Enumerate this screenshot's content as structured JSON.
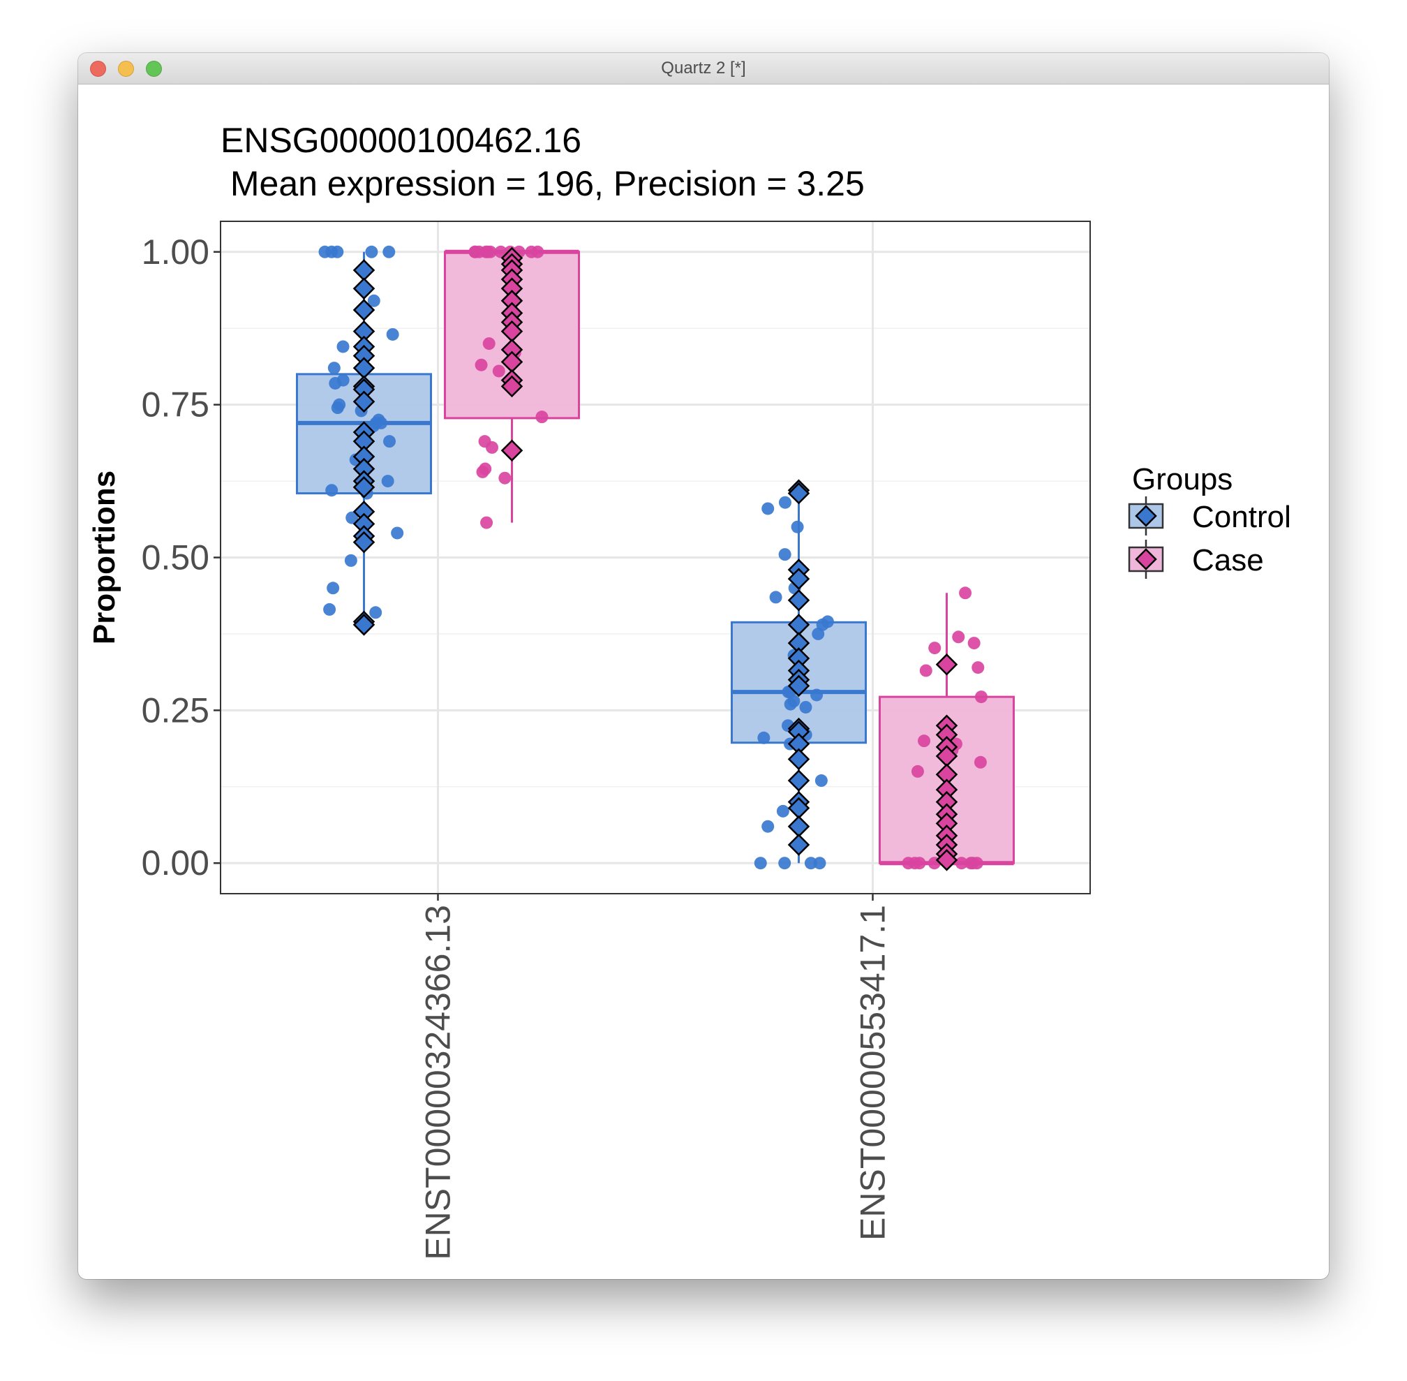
{
  "window": {
    "title": "Quartz 2 [*]",
    "buttons": {
      "close": "close",
      "minimize": "minimize",
      "zoom": "zoom"
    }
  },
  "chart_data": {
    "type": "boxplot",
    "title": "ENSG00000100462.16",
    "subtitle": " Mean expression = 196, Precision = 3.25",
    "xlabel": "",
    "ylabel": "Proportions",
    "ylim": [
      -0.05,
      1.05
    ],
    "yticks": [
      "0.00",
      "0.25",
      "0.50",
      "0.75",
      "1.00"
    ],
    "grid": true,
    "legend": {
      "title": "Groups",
      "position": "right"
    },
    "categories": [
      "ENST00000324366.13",
      "ENST00000553417.1"
    ],
    "series": [
      {
        "name": "Control",
        "color": "#3a78d0",
        "fill": "#adc7e9",
        "boxes": [
          {
            "min": 0.39,
            "q1": 0.605,
            "median": 0.72,
            "q3": 0.8,
            "max": 1.0
          },
          {
            "min": 0.0,
            "q1": 0.197,
            "median": 0.28,
            "q3": 0.394,
            "max": 0.61
          }
        ],
        "points": [
          [
            1.0,
            1.0,
            1.0,
            1.0,
            1.0,
            0.92,
            0.865,
            0.845,
            0.81,
            0.79,
            0.785,
            0.75,
            0.745,
            0.74,
            0.725,
            0.72,
            0.72,
            0.715,
            0.69,
            0.66,
            0.625,
            0.61,
            0.605,
            0.565,
            0.54,
            0.495,
            0.45,
            0.415,
            0.41
          ],
          [
            0.59,
            0.58,
            0.55,
            0.505,
            0.45,
            0.435,
            0.395,
            0.39,
            0.375,
            0.34,
            0.31,
            0.28,
            0.28,
            0.275,
            0.265,
            0.26,
            0.255,
            0.225,
            0.21,
            0.205,
            0.195,
            0.135,
            0.085,
            0.06,
            0.0,
            0.0,
            0.0,
            0.0
          ]
        ],
        "diamonds": [
          [
            0.97,
            0.94,
            0.905,
            0.87,
            0.845,
            0.83,
            0.81,
            0.78,
            0.775,
            0.755,
            0.705,
            0.69,
            0.665,
            0.645,
            0.625,
            0.615,
            0.575,
            0.555,
            0.535,
            0.525,
            0.395,
            0.39
          ],
          [
            0.61,
            0.605,
            0.48,
            0.465,
            0.43,
            0.39,
            0.36,
            0.335,
            0.315,
            0.3,
            0.29,
            0.22,
            0.215,
            0.195,
            0.17,
            0.135,
            0.1,
            0.09,
            0.06,
            0.03
          ]
        ]
      },
      {
        "name": "Case",
        "color": "#d9449f",
        "fill": "#f0b6d9",
        "boxes": [
          {
            "min": 0.557,
            "q1": 0.728,
            "median": 1.0,
            "q3": 1.0,
            "max": 1.0
          },
          {
            "min": 0.0,
            "q1": 0.0,
            "median": 0.0,
            "q3": 0.272,
            "max": 0.442
          }
        ],
        "points": [
          [
            1.0,
            1.0,
            1.0,
            1.0,
            1.0,
            1.0,
            1.0,
            1.0,
            1.0,
            1.0,
            1.0,
            0.85,
            0.835,
            0.815,
            0.805,
            0.73,
            0.69,
            0.68,
            0.645,
            0.64,
            0.63,
            0.557
          ],
          [
            0.442,
            0.37,
            0.36,
            0.352,
            0.32,
            0.315,
            0.272,
            0.2,
            0.195,
            0.185,
            0.165,
            0.15,
            0.0,
            0.0,
            0.0,
            0.0,
            0.0,
            0.0,
            0.0,
            0.0
          ]
        ],
        "diamonds": [
          [
            0.99,
            0.98,
            0.97,
            0.955,
            0.94,
            0.92,
            0.9,
            0.885,
            0.87,
            0.84,
            0.82,
            0.79,
            0.78,
            0.675
          ],
          [
            0.325,
            0.225,
            0.21,
            0.19,
            0.175,
            0.145,
            0.12,
            0.1,
            0.08,
            0.065,
            0.045,
            0.03,
            0.015,
            0.005
          ]
        ]
      }
    ]
  }
}
